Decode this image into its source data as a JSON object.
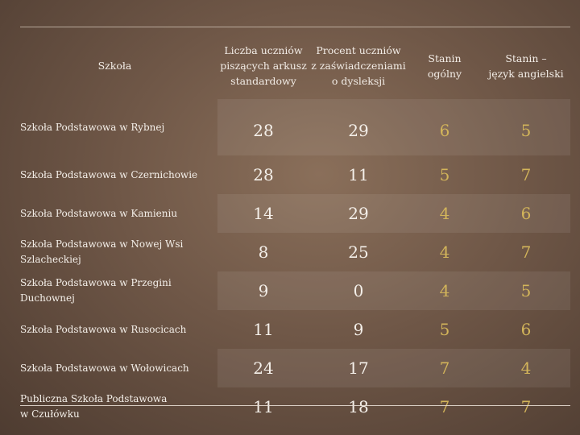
{
  "headers": {
    "school": "Szkoła",
    "students": [
      "Liczba uczniów",
      "piszących arkusz",
      "standardowy"
    ],
    "dyslexia": [
      "Procent uczniów",
      "z zaświadczeniami",
      "o dysleksji"
    ],
    "stanin_general": [
      "Stanin",
      "ogólny"
    ],
    "stanin_english": [
      "Stanin –",
      "język angielski"
    ]
  },
  "rows": [
    {
      "school": [
        "Szkoła Podstawowa w Rybnej"
      ],
      "students": "28",
      "dyslexia": "29",
      "stanin_general": "6",
      "stanin_english": "5"
    },
    {
      "school": [
        "Szkoła Podstawowa w Czernichowie"
      ],
      "students": "28",
      "dyslexia": "11",
      "stanin_general": "5",
      "stanin_english": "7"
    },
    {
      "school": [
        "Szkoła Podstawowa w Kamieniu"
      ],
      "students": "14",
      "dyslexia": "29",
      "stanin_general": "4",
      "stanin_english": "6"
    },
    {
      "school": [
        "Szkoła Podstawowa  w Nowej Wsi",
        "Szlacheckiej"
      ],
      "students": "8",
      "dyslexia": "25",
      "stanin_general": "4",
      "stanin_english": "7"
    },
    {
      "school": [
        "Szkoła Podstawowa w Przegini",
        "Duchownej"
      ],
      "students": "9",
      "dyslexia": "0",
      "stanin_general": "4",
      "stanin_english": "5"
    },
    {
      "school": [
        "Szkoła Podstawowa w Rusocicach"
      ],
      "students": "11",
      "dyslexia": "9",
      "stanin_general": "5",
      "stanin_english": "6"
    },
    {
      "school": [
        "Szkoła Podstawowa w Wołowicach"
      ],
      "students": "24",
      "dyslexia": "17",
      "stanin_general": "7",
      "stanin_english": "4"
    },
    {
      "school": [
        "Publiczna Szkoła Podstawowa",
        "w Czułówku"
      ],
      "students": "11",
      "dyslexia": "18",
      "stanin_general": "7",
      "stanin_english": "7"
    }
  ],
  "colors": {
    "text": "#f4efe9",
    "stanin": "#d2b45a",
    "background": "#6f5747"
  }
}
